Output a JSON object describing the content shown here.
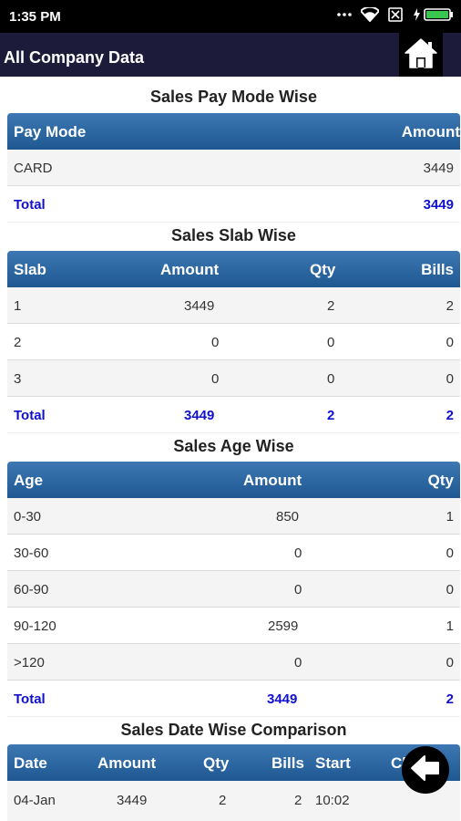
{
  "status": {
    "time": "1:35 PM"
  },
  "appbar": {
    "title": "All Company Data"
  },
  "paymode": {
    "title": "Sales Pay Mode Wise",
    "headers": [
      "Pay Mode",
      "Amount"
    ],
    "rows": [
      [
        "CARD",
        "3449"
      ]
    ],
    "total": [
      "Total",
      "3449"
    ]
  },
  "slab": {
    "title": "Sales Slab Wise",
    "headers": [
      "Slab",
      "Amount",
      "Qty",
      "Bills"
    ],
    "rows": [
      [
        "1",
        "3449",
        "2",
        "2"
      ],
      [
        "2",
        "0",
        "0",
        "0"
      ],
      [
        "3",
        "0",
        "0",
        "0"
      ]
    ],
    "total": [
      "Total",
      "3449",
      "2",
      "2"
    ]
  },
  "age": {
    "title": "Sales Age Wise",
    "headers": [
      "Age",
      "Amount",
      "Qty"
    ],
    "rows": [
      [
        "0-30",
        "850",
        "1"
      ],
      [
        "30-60",
        "0",
        "0"
      ],
      [
        "60-90",
        "0",
        "0"
      ],
      [
        "90-120",
        "2599",
        "1"
      ],
      [
        ">120",
        "0",
        "0"
      ]
    ],
    "total": [
      "Total",
      "3449",
      "2"
    ]
  },
  "datewise": {
    "title": "Sales Date Wise Comparison",
    "headers": [
      "Date",
      "Amount",
      "Qty",
      "Bills",
      "Start",
      "Cl"
    ],
    "rows": [
      [
        "04-Jan",
        "3449",
        "2",
        "2",
        "10:02"
      ]
    ]
  }
}
